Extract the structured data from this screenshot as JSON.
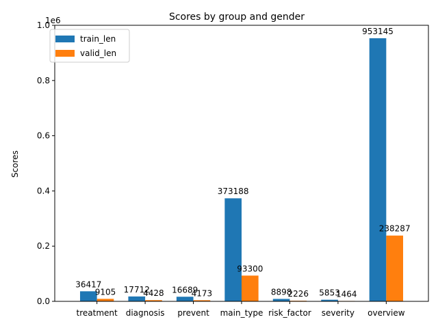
{
  "chart_data": {
    "type": "bar",
    "title": "Scores by group and gender",
    "xlabel": "",
    "ylabel": "Scores",
    "scale_label": "1e6",
    "categories": [
      "treatment",
      "diagnosis",
      "prevent",
      "main_type",
      "risk_factor",
      "severity",
      "overview"
    ],
    "series": [
      {
        "name": "train_len",
        "color": "#1f77b4",
        "values": [
          36417,
          17712,
          16689,
          373188,
          8898,
          5853,
          953145
        ]
      },
      {
        "name": "valid_len",
        "color": "#ff7f0e",
        "values": [
          9105,
          4428,
          4173,
          93300,
          2226,
          1464,
          238287
        ]
      }
    ],
    "ylim": [
      0,
      1000000
    ],
    "yticks": [
      0,
      200000,
      400000,
      600000,
      800000,
      1000000
    ],
    "ytick_labels": [
      "0.0",
      "0.2",
      "0.4",
      "0.6",
      "0.8",
      "1.0"
    ],
    "legend": "top-left",
    "grid": false
  }
}
